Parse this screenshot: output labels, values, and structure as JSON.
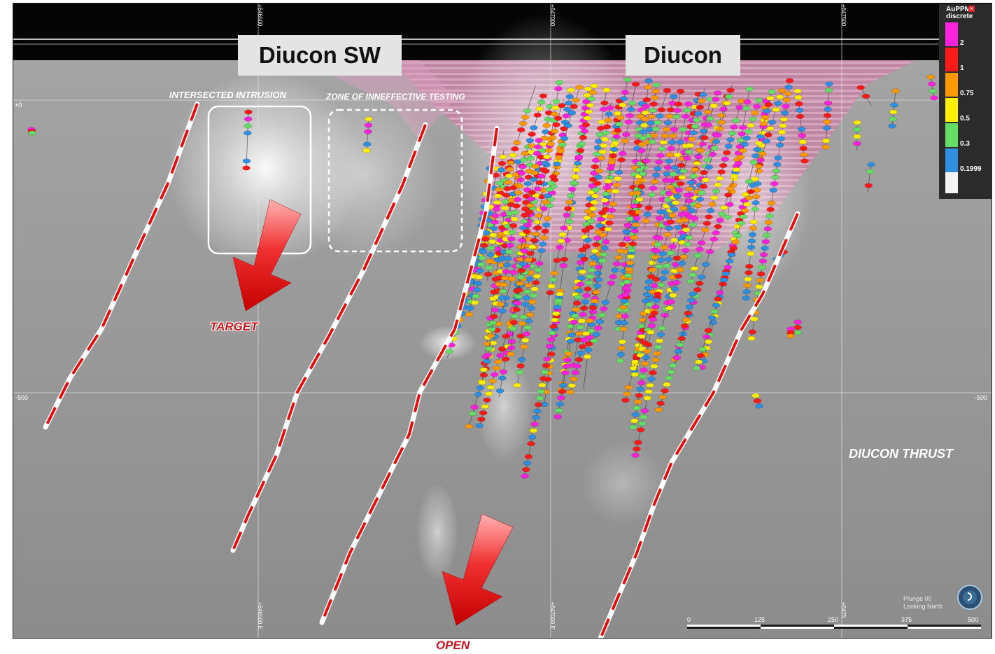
{
  "titles": {
    "left_deposit": "Diucon SW",
    "right_deposit": "Diucon"
  },
  "annotations": {
    "intersected_intrusion": "INTERSECTED INTRUSION",
    "zone_testing": "ZONE OF INNEFFECTIVE TESTING",
    "target": "TARGET",
    "open": "OPEN",
    "thrust": "DIUCON THRUST"
  },
  "legend": {
    "title_line1": "AuPPM",
    "title_line2": "discrete",
    "entries": [
      {
        "label": "2",
        "color": "#ff22dd"
      },
      {
        "label": "1",
        "color": "#ff1a1a"
      },
      {
        "label": "0.75",
        "color": "#ff9900"
      },
      {
        "label": "0.5",
        "color": "#ffee00"
      },
      {
        "label": "0.3",
        "color": "#66dd66"
      },
      {
        "label": "0.1999",
        "color": "#2f8fe0"
      },
      {
        "label": "",
        "color": "#f4f4f4"
      }
    ]
  },
  "grid": {
    "easting_top": [
      "+646500",
      "+647000",
      "+647500"
    ],
    "easting_bottom": [
      "+646500 E",
      "+647000 E",
      "+6475"
    ],
    "elev_left": [
      "+0",
      "-500"
    ],
    "elev_right": [
      "-500"
    ]
  },
  "scale_bar": {
    "ticks": [
      "0",
      "125",
      "250",
      "375",
      "500"
    ]
  },
  "view": {
    "line1": "Plunge 00",
    "line2": "Looking North"
  },
  "colors": {
    "fault_dash": "#e01010",
    "arrow": "#e41e1e",
    "annotation_red": "#c8141e",
    "shell_pink": "#d8609a"
  },
  "icons": [
    "compass-icon",
    "legend-close-icon",
    "target-arrow-icon",
    "open-arrow-icon"
  ]
}
